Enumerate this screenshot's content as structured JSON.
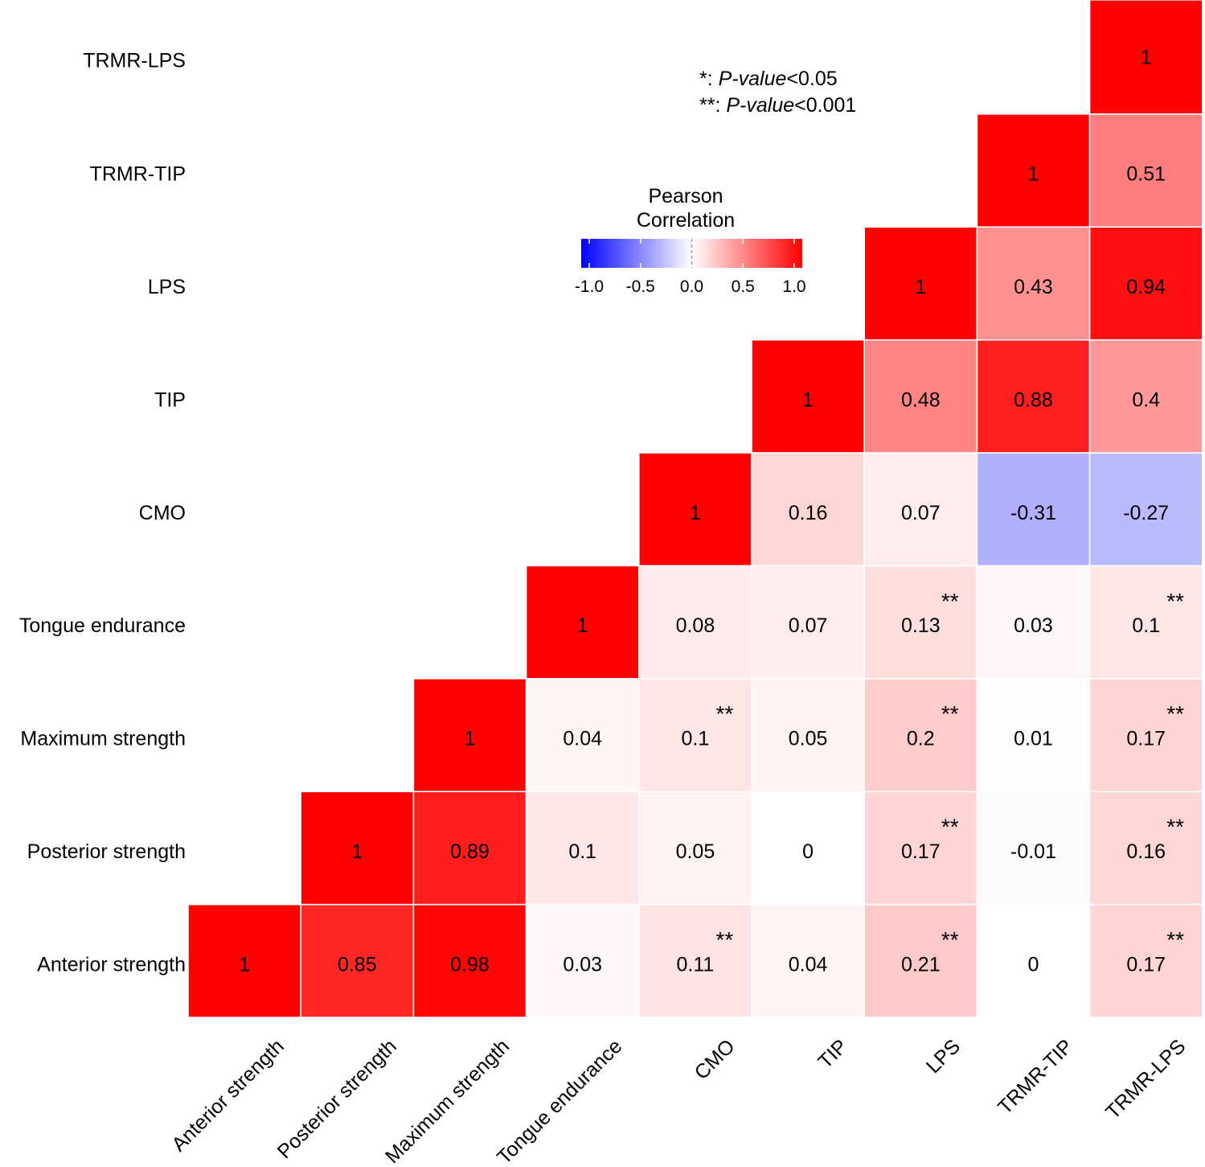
{
  "chart_data": {
    "type": "heatmap",
    "variables": [
      "Anterior strength",
      "Posterior strength",
      "Maximum strength",
      "Tongue endurance",
      "CMO",
      "TIP",
      "LPS",
      "TRMR-TIP",
      "TRMR-LPS"
    ],
    "cells": [
      {
        "row": "Anterior strength",
        "col": "Anterior strength",
        "value": 1,
        "label": "1",
        "sig": ""
      },
      {
        "row": "Anterior strength",
        "col": "Posterior strength",
        "value": 0.85,
        "label": "0.85",
        "sig": ""
      },
      {
        "row": "Anterior strength",
        "col": "Maximum strength",
        "value": 0.98,
        "label": "0.98",
        "sig": ""
      },
      {
        "row": "Anterior strength",
        "col": "Tongue endurance",
        "value": 0.03,
        "label": "0.03",
        "sig": ""
      },
      {
        "row": "Anterior strength",
        "col": "CMO",
        "value": 0.11,
        "label": "0.11",
        "sig": "**"
      },
      {
        "row": "Anterior strength",
        "col": "TIP",
        "value": 0.04,
        "label": "0.04",
        "sig": ""
      },
      {
        "row": "Anterior strength",
        "col": "LPS",
        "value": 0.21,
        "label": "0.21",
        "sig": "**"
      },
      {
        "row": "Anterior strength",
        "col": "TRMR-TIP",
        "value": 0,
        "label": "0",
        "sig": ""
      },
      {
        "row": "Anterior strength",
        "col": "TRMR-LPS",
        "value": 0.17,
        "label": "0.17",
        "sig": "**"
      },
      {
        "row": "Posterior strength",
        "col": "Posterior strength",
        "value": 1,
        "label": "1",
        "sig": ""
      },
      {
        "row": "Posterior strength",
        "col": "Maximum strength",
        "value": 0.89,
        "label": "0.89",
        "sig": ""
      },
      {
        "row": "Posterior strength",
        "col": "Tongue endurance",
        "value": 0.1,
        "label": "0.1",
        "sig": ""
      },
      {
        "row": "Posterior strength",
        "col": "CMO",
        "value": 0.05,
        "label": "0.05",
        "sig": ""
      },
      {
        "row": "Posterior strength",
        "col": "TIP",
        "value": 0,
        "label": "0",
        "sig": ""
      },
      {
        "row": "Posterior strength",
        "col": "LPS",
        "value": 0.17,
        "label": "0.17",
        "sig": "**"
      },
      {
        "row": "Posterior strength",
        "col": "TRMR-TIP",
        "value": -0.01,
        "label": "-0.01",
        "sig": ""
      },
      {
        "row": "Posterior strength",
        "col": "TRMR-LPS",
        "value": 0.16,
        "label": "0.16",
        "sig": "**"
      },
      {
        "row": "Maximum strength",
        "col": "Maximum strength",
        "value": 1,
        "label": "1",
        "sig": ""
      },
      {
        "row": "Maximum strength",
        "col": "Tongue endurance",
        "value": 0.04,
        "label": "0.04",
        "sig": ""
      },
      {
        "row": "Maximum strength",
        "col": "CMO",
        "value": 0.1,
        "label": "0.1",
        "sig": "**"
      },
      {
        "row": "Maximum strength",
        "col": "TIP",
        "value": 0.05,
        "label": "0.05",
        "sig": ""
      },
      {
        "row": "Maximum strength",
        "col": "LPS",
        "value": 0.2,
        "label": "0.2",
        "sig": "**"
      },
      {
        "row": "Maximum strength",
        "col": "TRMR-TIP",
        "value": 0.01,
        "label": "0.01",
        "sig": ""
      },
      {
        "row": "Maximum strength",
        "col": "TRMR-LPS",
        "value": 0.17,
        "label": "0.17",
        "sig": "**"
      },
      {
        "row": "Tongue endurance",
        "col": "Tongue endurance",
        "value": 1,
        "label": "1",
        "sig": ""
      },
      {
        "row": "Tongue endurance",
        "col": "CMO",
        "value": 0.08,
        "label": "0.08",
        "sig": ""
      },
      {
        "row": "Tongue endurance",
        "col": "TIP",
        "value": 0.07,
        "label": "0.07",
        "sig": ""
      },
      {
        "row": "Tongue endurance",
        "col": "LPS",
        "value": 0.13,
        "label": "0.13",
        "sig": "**"
      },
      {
        "row": "Tongue endurance",
        "col": "TRMR-TIP",
        "value": 0.03,
        "label": "0.03",
        "sig": ""
      },
      {
        "row": "Tongue endurance",
        "col": "TRMR-LPS",
        "value": 0.1,
        "label": "0.1",
        "sig": "**"
      },
      {
        "row": "CMO",
        "col": "CMO",
        "value": 1,
        "label": "1",
        "sig": ""
      },
      {
        "row": "CMO",
        "col": "TIP",
        "value": 0.16,
        "label": "0.16",
        "sig": ""
      },
      {
        "row": "CMO",
        "col": "LPS",
        "value": 0.07,
        "label": "0.07",
        "sig": ""
      },
      {
        "row": "CMO",
        "col": "TRMR-TIP",
        "value": -0.31,
        "label": "-0.31",
        "sig": ""
      },
      {
        "row": "CMO",
        "col": "TRMR-LPS",
        "value": -0.27,
        "label": "-0.27",
        "sig": ""
      },
      {
        "row": "TIP",
        "col": "TIP",
        "value": 1,
        "label": "1",
        "sig": ""
      },
      {
        "row": "TIP",
        "col": "LPS",
        "value": 0.48,
        "label": "0.48",
        "sig": ""
      },
      {
        "row": "TIP",
        "col": "TRMR-TIP",
        "value": 0.88,
        "label": "0.88",
        "sig": ""
      },
      {
        "row": "TIP",
        "col": "TRMR-LPS",
        "value": 0.4,
        "label": "0.4",
        "sig": ""
      },
      {
        "row": "LPS",
        "col": "LPS",
        "value": 1,
        "label": "1",
        "sig": ""
      },
      {
        "row": "LPS",
        "col": "TRMR-TIP",
        "value": 0.43,
        "label": "0.43",
        "sig": ""
      },
      {
        "row": "LPS",
        "col": "TRMR-LPS",
        "value": 0.94,
        "label": "0.94",
        "sig": ""
      },
      {
        "row": "TRMR-TIP",
        "col": "TRMR-TIP",
        "value": 1,
        "label": "1",
        "sig": ""
      },
      {
        "row": "TRMR-TIP",
        "col": "TRMR-LPS",
        "value": 0.51,
        "label": "0.51",
        "sig": ""
      },
      {
        "row": "TRMR-LPS",
        "col": "TRMR-LPS",
        "value": 1,
        "label": "1",
        "sig": ""
      }
    ],
    "legend": {
      "title_line1": "Pearson",
      "title_line2": "Correlation",
      "range": [
        -1.0,
        1.0
      ],
      "ticks": [
        "-1.0",
        "-0.5",
        "0.0",
        "0.5",
        "1.0"
      ],
      "tick_values": [
        -1.0,
        -0.5,
        0.0,
        0.5,
        1.0
      ],
      "low_color": "#0000ff",
      "mid_color": "#ffffff",
      "high_color": "#ff0000",
      "placement": "top-center"
    }
  },
  "note": {
    "line1_prefix": "*: ",
    "line1_italic": "P-value",
    "line1_suffix": "<0.05",
    "line2_prefix": "**: ",
    "line2_italic": "P-value",
    "line2_suffix": "<0.001"
  }
}
